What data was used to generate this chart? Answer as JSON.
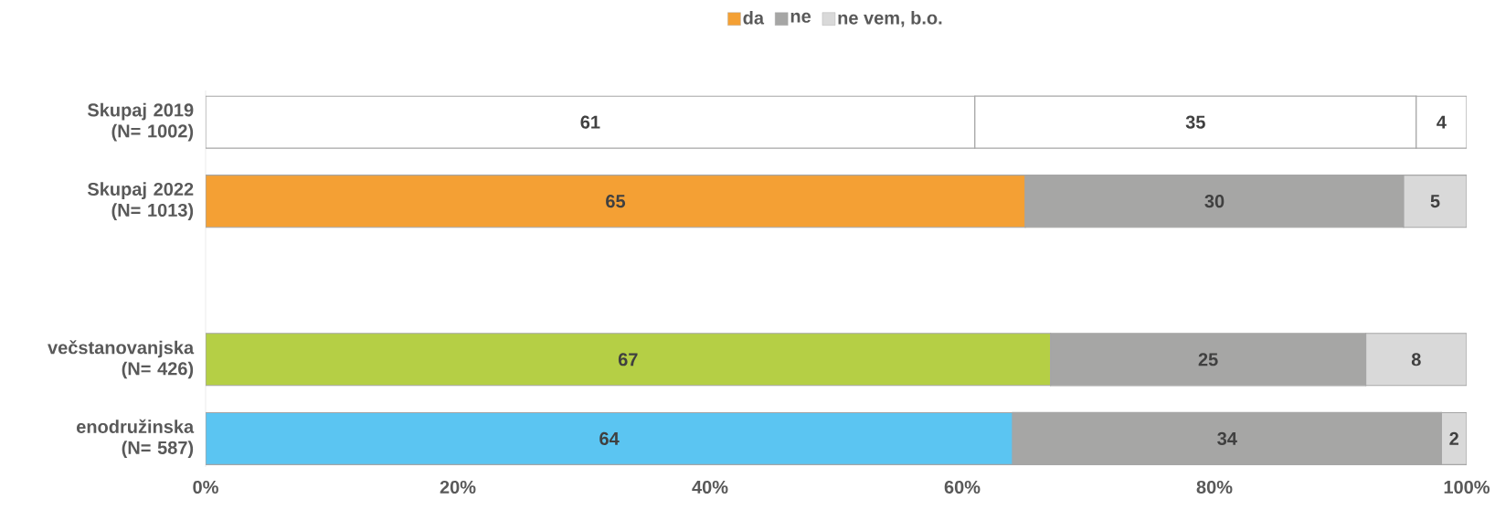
{
  "chart_data": {
    "type": "bar",
    "orientation": "horizontal",
    "stacked": true,
    "categories": [
      "Skupaj 2019 (N= 1002)",
      "Skupaj 2022 (N= 1013)",
      null,
      "večstanovanjska (N= 426)",
      "enodružinska (N= 587)"
    ],
    "series": [
      {
        "name": "da",
        "color": "#f4a034",
        "colors": [
          "#ffffff",
          "#f4a034",
          null,
          "#b5cf45",
          "#5bc5f2"
        ],
        "values": [
          61,
          65,
          null,
          67,
          64
        ]
      },
      {
        "name": "ne",
        "color": "#a6a6a5",
        "colors": [
          "#ffffff",
          "#a6a6a5",
          null,
          "#a6a6a5",
          "#a6a6a5"
        ],
        "values": [
          35,
          30,
          null,
          25,
          34
        ]
      },
      {
        "name": "ne vem, b.o.",
        "color": "#d9d9d9",
        "colors": [
          "#ffffff",
          "#d9d9d9",
          null,
          "#d9d9d9",
          "#d9d9d9"
        ],
        "values": [
          4,
          5,
          null,
          8,
          2
        ]
      }
    ],
    "xlim": [
      0,
      100
    ],
    "xticks": [
      {
        "value": 0,
        "label": "0%"
      },
      {
        "value": 20,
        "label": "20%"
      },
      {
        "value": 40,
        "label": "40%"
      },
      {
        "value": 60,
        "label": "60%"
      },
      {
        "value": 80,
        "label": "80%"
      },
      {
        "value": 100,
        "label": "100%"
      }
    ],
    "legend": "top",
    "data_labels": true
  }
}
